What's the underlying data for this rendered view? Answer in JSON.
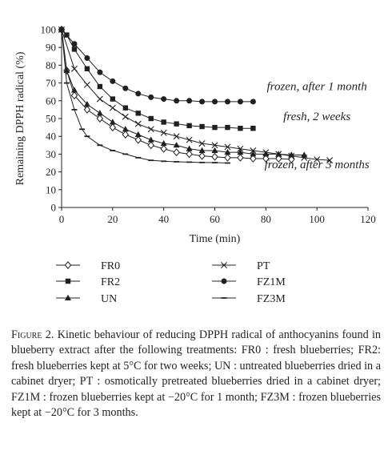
{
  "chart_data": {
    "type": "line",
    "xlabel": "Time (min)",
    "ylabel": "Remaining DPPH radical (%)",
    "xlim": [
      0,
      120
    ],
    "ylim": [
      0,
      100
    ],
    "xticks": [
      0,
      20,
      40,
      60,
      80,
      100,
      120
    ],
    "yticks": [
      0,
      10,
      20,
      30,
      40,
      50,
      60,
      70,
      80,
      90,
      100
    ],
    "grid": false,
    "legend_position": "below",
    "annotations": [
      {
        "text": "frozen, after 1 month",
        "x": 100,
        "y": 66
      },
      {
        "text": "fresh, 2 weeks",
        "x": 100,
        "y": 49
      },
      {
        "text": "frozen, after 3 months",
        "x": 100,
        "y": 22
      }
    ],
    "series": [
      {
        "name": "FR0",
        "marker": "diamond-open",
        "x": [
          0,
          2,
          5,
          10,
          15,
          20,
          25,
          30,
          35,
          40,
          45,
          50,
          55,
          60,
          65,
          70,
          75,
          80,
          85,
          90
        ],
        "y": [
          100,
          77,
          63,
          55,
          50,
          45,
          41,
          38,
          35,
          33,
          31,
          30,
          29,
          28.5,
          28,
          28,
          27.5,
          27.5,
          27.5,
          27
        ]
      },
      {
        "name": "FR2",
        "marker": "square-filled",
        "x": [
          0,
          2,
          5,
          10,
          15,
          20,
          25,
          30,
          35,
          40,
          45,
          50,
          55,
          60,
          65,
          70,
          75
        ],
        "y": [
          100,
          97,
          89,
          78,
          68,
          61,
          56,
          53,
          50,
          48,
          47,
          46,
          45.5,
          45,
          45,
          44.5,
          44.5
        ]
      },
      {
        "name": "UN",
        "marker": "triangle-filled",
        "x": [
          0,
          2,
          5,
          10,
          15,
          20,
          25,
          30,
          35,
          40,
          45,
          50,
          55,
          60,
          65,
          70,
          75,
          80,
          85,
          90,
          95
        ],
        "y": [
          100,
          77,
          66,
          58,
          53,
          48,
          44,
          41,
          38,
          36,
          35,
          33,
          32,
          32,
          31,
          31,
          30,
          30,
          30,
          29.5,
          29.5
        ]
      },
      {
        "name": "PT",
        "marker": "x",
        "x": [
          0,
          5,
          10,
          15,
          20,
          25,
          30,
          35,
          40,
          45,
          50,
          55,
          60,
          65,
          70,
          75,
          80,
          85,
          90,
          95,
          100,
          105
        ],
        "y": [
          100,
          78,
          69,
          61,
          56,
          51,
          47,
          44,
          42,
          40,
          38,
          36,
          35,
          34,
          33,
          32,
          31,
          30,
          29,
          28,
          27,
          26.5
        ]
      },
      {
        "name": "FZ1M",
        "marker": "circle-filled",
        "x": [
          0,
          5,
          10,
          15,
          20,
          25,
          30,
          35,
          40,
          45,
          50,
          55,
          60,
          65,
          70,
          75
        ],
        "y": [
          100,
          92,
          84,
          76,
          71,
          67,
          64,
          62,
          61,
          60,
          60,
          59.5,
          59.5,
          59.5,
          59.5,
          59.5
        ]
      },
      {
        "name": "FZ3M",
        "marker": "dash",
        "x": [
          0,
          2,
          5,
          8,
          10,
          15,
          20,
          25,
          30,
          35,
          40,
          45,
          50,
          55,
          60,
          65
        ],
        "y": [
          100,
          70,
          55,
          44,
          40,
          35,
          32,
          30,
          28,
          26.5,
          26,
          25.7,
          25.5,
          25.3,
          25.2,
          25
        ]
      }
    ],
    "legend": {
      "rows": [
        [
          {
            "label": "FR0",
            "series": 0
          },
          {
            "label": "PT",
            "series": 3
          }
        ],
        [
          {
            "label": "FR2",
            "series": 1
          },
          {
            "label": "FZ1M",
            "series": 4
          }
        ],
        [
          {
            "label": "UN",
            "series": 2
          },
          {
            "label": "FZ3M",
            "series": 5
          }
        ]
      ]
    }
  },
  "caption": {
    "figure_label": "Figure 2.",
    "text": "Kinetic behaviour of reducing DPPH radical of anthocyanins found in blueberry extract after the following treatments: FR0 : fresh blueberries; FR2: fresh blueberries kept at 5°C for two weeks; UN : untreated blueberries dried in a cabinet dryer; PT : osmotically pretreated blueberries dried in a cabinet dryer; FZ1M : frozen blueberries kept at −20°C for 1 month; FZ3M : frozen blueberries kept at −20°C for 3 months."
  }
}
